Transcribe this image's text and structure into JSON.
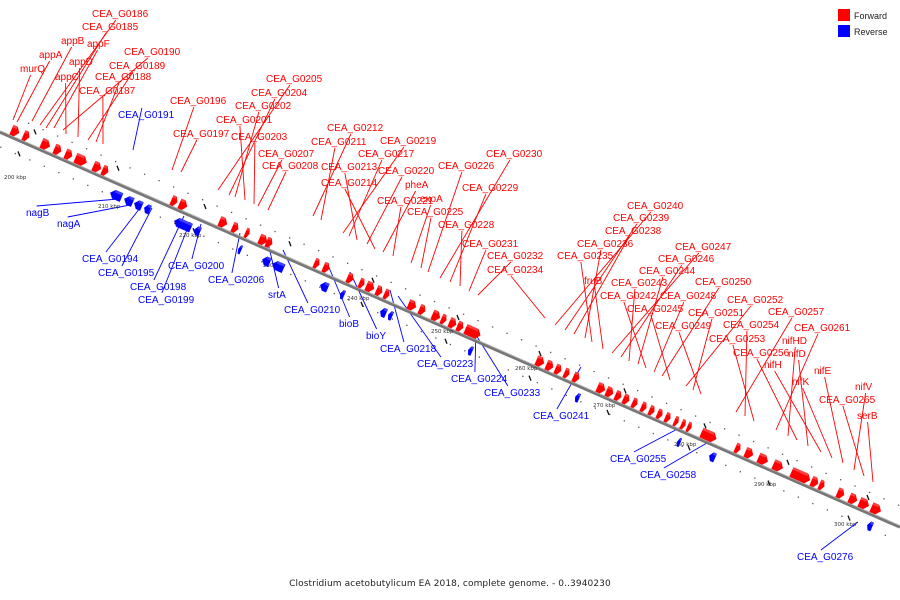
{
  "caption": "Clostridium acetobutylicum EA 2018, complete genome. - 0..3940230",
  "legend": {
    "forward_label": "Forward",
    "reverse_label": "Reverse",
    "forward_color": "#ff0000",
    "reverse_color": "#0000ff"
  },
  "ticks": [
    "200 kbp",
    "210 kbp",
    "220 kbp",
    "230 kbp",
    "240 kbp",
    "250 kbp",
    "260 kbp",
    "270 kbp",
    "280 kbp",
    "290 kbp",
    "300 kbp"
  ],
  "forward_genes": [
    "CEA_G0186",
    "CEA_G0185",
    "appB",
    "appF",
    "CEA_G0190",
    "appA",
    "appD",
    "CEA_G0189",
    "murQ",
    "appC",
    "CEA_G0188",
    "CEA_G0187",
    "CEA_G0196",
    "CEA_G0197",
    "CEA_G0205",
    "CEA_G0204",
    "CEA_G0202",
    "CEA_G0201",
    "CEA_G0203",
    "CEA_G0207",
    "CEA_G0208",
    "CEA_G0212",
    "CEA_G0211",
    "CEA_G0219",
    "CEA_G0217",
    "CEA_G0213",
    "CEA_G0220",
    "CEA_G0214",
    "pheA",
    "CEA_G0221",
    "exoA",
    "CEA_G0225",
    "CEA_G0226",
    "CEA_G0230",
    "CEA_G0229",
    "CEA_G0228",
    "CEA_G0231",
    "CEA_G0232",
    "CEA_G0234",
    "CEA_G0240",
    "CEA_G0239",
    "CEA_G0238",
    "CEA_G0236",
    "CEA_G0235",
    "fruB",
    "CEA_G0247",
    "CEA_G0246",
    "CEA_G0243",
    "CEA_G0244",
    "CEA_G0242",
    "CEA_G0248",
    "CEA_G0250",
    "CEA_G0245",
    "CEA_G0252",
    "CEA_G0251",
    "CEA_G0249",
    "CEA_G0257",
    "CEA_G0254",
    "CEA_G0253",
    "CEA_G0261",
    "nifHD",
    "CEA_G0256",
    "nifD",
    "nifH",
    "nifK",
    "nifE",
    "nifV",
    "CEA_G0265",
    "serB"
  ],
  "reverse_genes": [
    "CEA_G0191",
    "nagB",
    "nagA",
    "CEA_G0194",
    "CEA_G0195",
    "CEA_G0198",
    "CEA_G0200",
    "CEA_G0199",
    "CEA_G0206",
    "srtA",
    "CEA_G0210",
    "bioB",
    "bioY",
    "CEA_G0218",
    "CEA_G0223",
    "CEA_G0224",
    "CEA_G0233",
    "CEA_G0241",
    "CEA_G0255",
    "CEA_G0258",
    "CEA_G0276"
  ]
}
